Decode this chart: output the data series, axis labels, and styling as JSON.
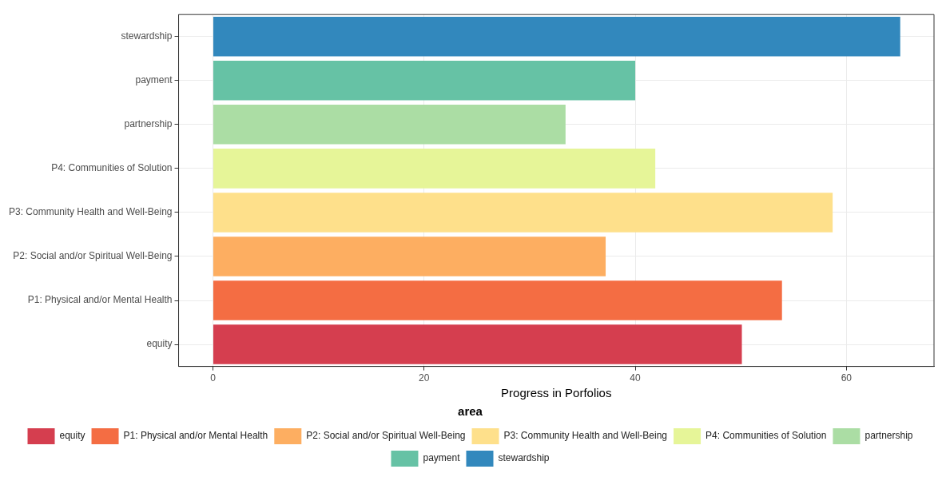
{
  "chart_data": {
    "type": "bar",
    "orientation": "horizontal",
    "xlabel": "Progress in Porfolios",
    "legend_title": "area",
    "categories": [
      "stewardship",
      "payment",
      "partnership",
      "P4: Communities of Solution",
      "P3: Community Health and Well-Being",
      "P2: Social and/or Spiritual Well-Being",
      "P1: Physical and/or Mental Health",
      "equity"
    ],
    "series": [
      {
        "name": "equity",
        "color": "#d53e4f",
        "values": [
          null,
          null,
          null,
          null,
          null,
          null,
          null,
          50.1
        ]
      },
      {
        "name": "P1: Physical and/or Mental Health",
        "color": "#f46d43",
        "values": [
          null,
          null,
          null,
          null,
          null,
          null,
          53.9,
          null
        ]
      },
      {
        "name": "P2: Social and/or Spiritual Well-Being",
        "color": "#fdae61",
        "values": [
          null,
          null,
          null,
          null,
          null,
          37.2,
          null,
          null
        ]
      },
      {
        "name": "P3: Community Health and Well-Being",
        "color": "#fee08b",
        "values": [
          null,
          null,
          null,
          null,
          58.7,
          null,
          null,
          null
        ]
      },
      {
        "name": "P4: Communities of Solution",
        "color": "#e6f598",
        "values": [
          null,
          null,
          null,
          41.9,
          null,
          null,
          null,
          null
        ]
      },
      {
        "name": "partnership",
        "color": "#abdda4",
        "values": [
          null,
          null,
          33.4,
          null,
          null,
          null,
          null,
          null
        ]
      },
      {
        "name": "payment",
        "color": "#66c2a5",
        "values": [
          null,
          40.0,
          null,
          null,
          null,
          null,
          null,
          null
        ]
      },
      {
        "name": "stewardship",
        "color": "#3288bd",
        "values": [
          65.1,
          null,
          null,
          null,
          null,
          null,
          null,
          null
        ]
      }
    ],
    "xlim": [
      -3.25,
      68.3
    ],
    "xticks": [
      0,
      20,
      40,
      60
    ],
    "grid": true,
    "legend": "bottom"
  }
}
